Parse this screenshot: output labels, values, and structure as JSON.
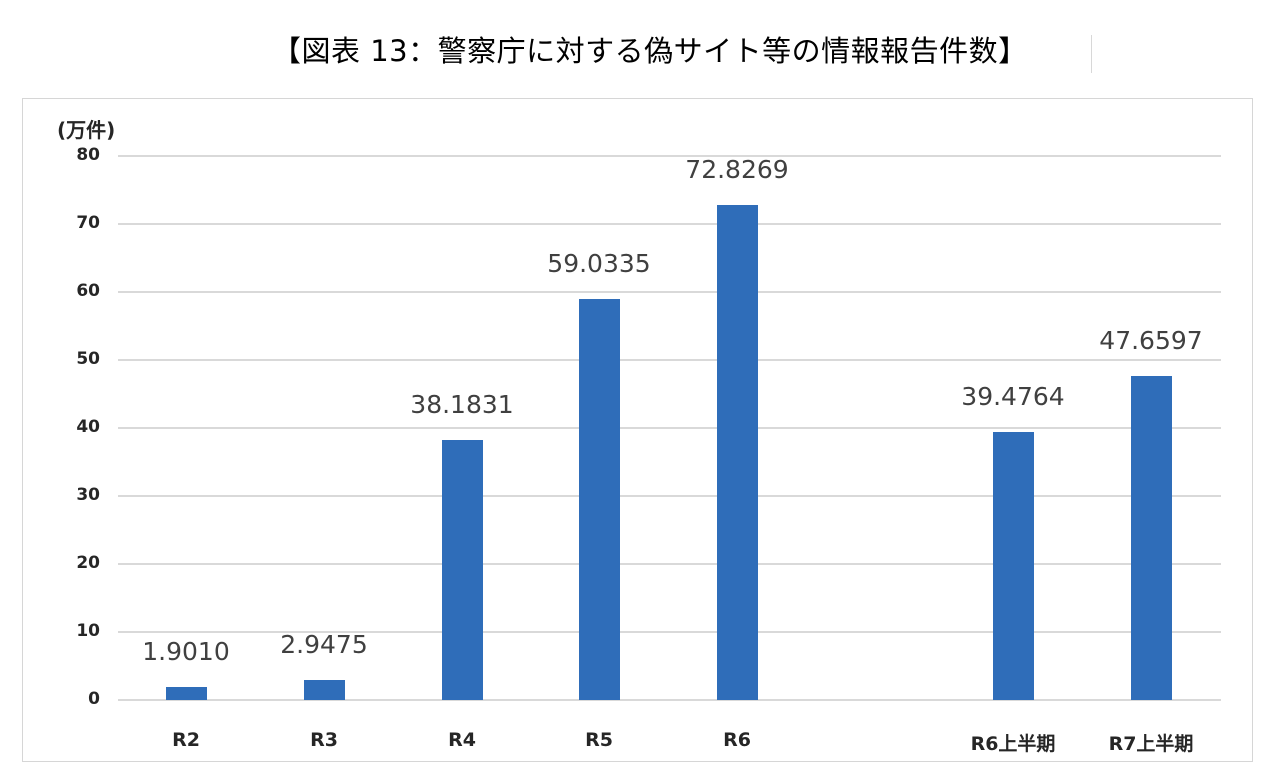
{
  "title": "【図表 13：警察庁に対する偽サイト等の情報報告件数】",
  "chart_data": {
    "type": "bar",
    "title": "【図表 13：警察庁に対する偽サイト等の情報報告件数】",
    "xlabel": "",
    "ylabel": "(万件)",
    "ylim": [
      0,
      80
    ],
    "yticks": [
      0,
      10,
      20,
      30,
      40,
      50,
      60,
      70,
      80
    ],
    "grid": true,
    "legend": null,
    "categories": [
      "R2",
      "R3",
      "R4",
      "R5",
      "R6",
      "R6上半期",
      "R7上半期"
    ],
    "values": [
      1.901,
      2.9475,
      38.1831,
      59.0335,
      72.8269,
      39.4764,
      47.6597
    ],
    "value_labels": [
      "1.9010",
      "2.9475",
      "38.1831",
      "59.0335",
      "72.8269",
      "39.4764",
      "47.6597"
    ],
    "bar_color": "#2F6DB9"
  },
  "axis": {
    "unit_label": "(万件)",
    "ticks": [
      "80",
      "70",
      "60",
      "50",
      "40",
      "30",
      "20",
      "10",
      "0"
    ]
  }
}
